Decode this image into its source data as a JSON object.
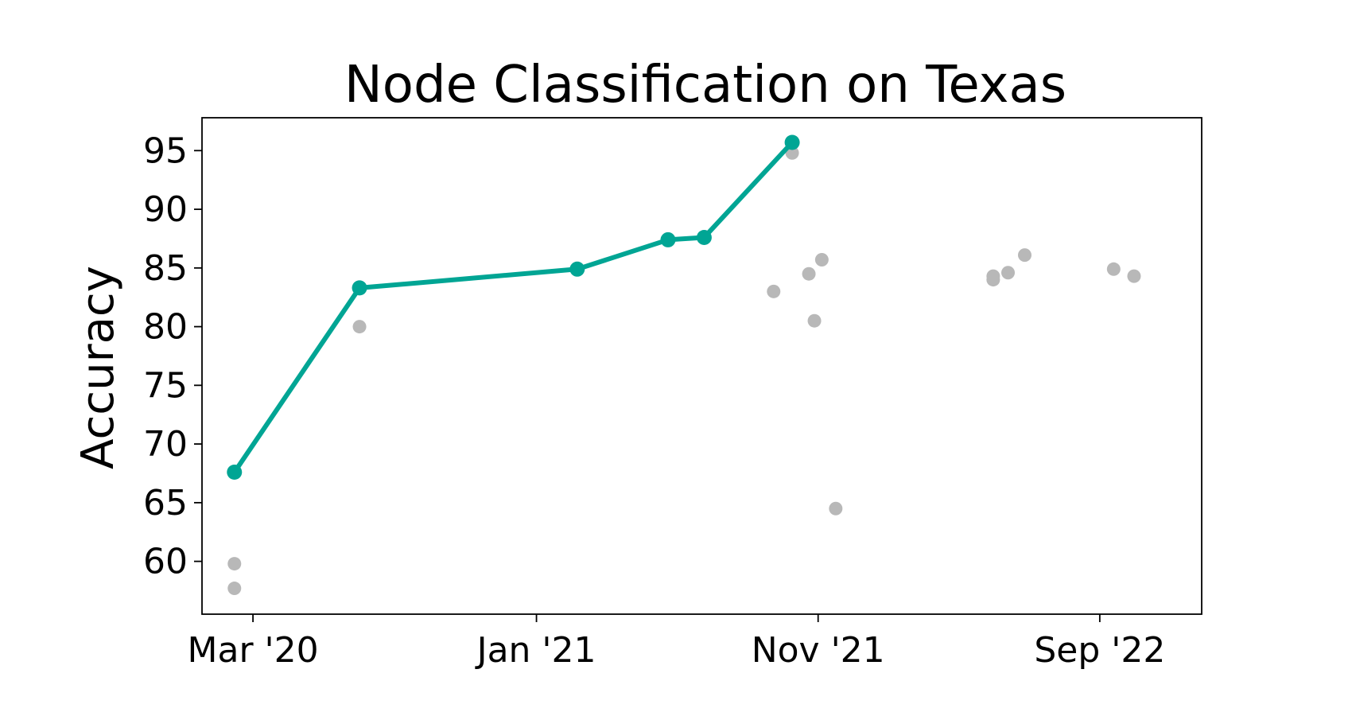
{
  "chart_data": {
    "type": "scatter",
    "title": "Node Classification on Texas",
    "xlabel": "",
    "ylabel": "Accuracy",
    "x_scale": "date",
    "xlim": [
      "2020-01-06",
      "2022-12-20"
    ],
    "ylim": [
      55.5,
      97.8
    ],
    "x_ticks": [
      {
        "date": "2020-03-01",
        "label": "Mar '20"
      },
      {
        "date": "2021-01-01",
        "label": "Jan '21"
      },
      {
        "date": "2021-11-01",
        "label": "Nov '21"
      },
      {
        "date": "2022-09-01",
        "label": "Sep '22"
      }
    ],
    "y_ticks": [
      60,
      65,
      70,
      75,
      80,
      85,
      90,
      95
    ],
    "grid": false,
    "legend": null,
    "colors": {
      "sota": "#00a594",
      "other": "#b8b8b8",
      "axis": "#000000"
    },
    "series": [
      {
        "kind": "line-markers",
        "color": "#00a594",
        "points": [
          {
            "x": "2020-02-10",
            "y": 67.6
          },
          {
            "x": "2020-06-24",
            "y": 83.3
          },
          {
            "x": "2021-02-14",
            "y": 84.9
          },
          {
            "x": "2021-05-23",
            "y": 87.4
          },
          {
            "x": "2021-07-01",
            "y": 87.6
          },
          {
            "x": "2021-10-04",
            "y": 95.7
          }
        ]
      },
      {
        "kind": "scatter",
        "color": "#b8b8b8",
        "points": [
          {
            "x": "2020-02-10",
            "y": 59.8
          },
          {
            "x": "2020-02-10",
            "y": 57.7
          },
          {
            "x": "2020-06-24",
            "y": 80.0
          },
          {
            "x": "2021-09-14",
            "y": 83.0
          },
          {
            "x": "2021-10-04",
            "y": 94.8
          },
          {
            "x": "2021-10-22",
            "y": 84.5
          },
          {
            "x": "2021-11-05",
            "y": 85.7
          },
          {
            "x": "2021-11-20",
            "y": 64.5
          },
          {
            "x": "2021-10-28",
            "y": 80.5
          },
          {
            "x": "2022-05-09",
            "y": 84.3
          },
          {
            "x": "2022-05-09",
            "y": 84.0
          },
          {
            "x": "2022-05-25",
            "y": 84.6
          },
          {
            "x": "2022-06-12",
            "y": 86.1
          },
          {
            "x": "2022-09-16",
            "y": 84.9
          },
          {
            "x": "2022-10-08",
            "y": 84.3
          }
        ]
      }
    ]
  }
}
